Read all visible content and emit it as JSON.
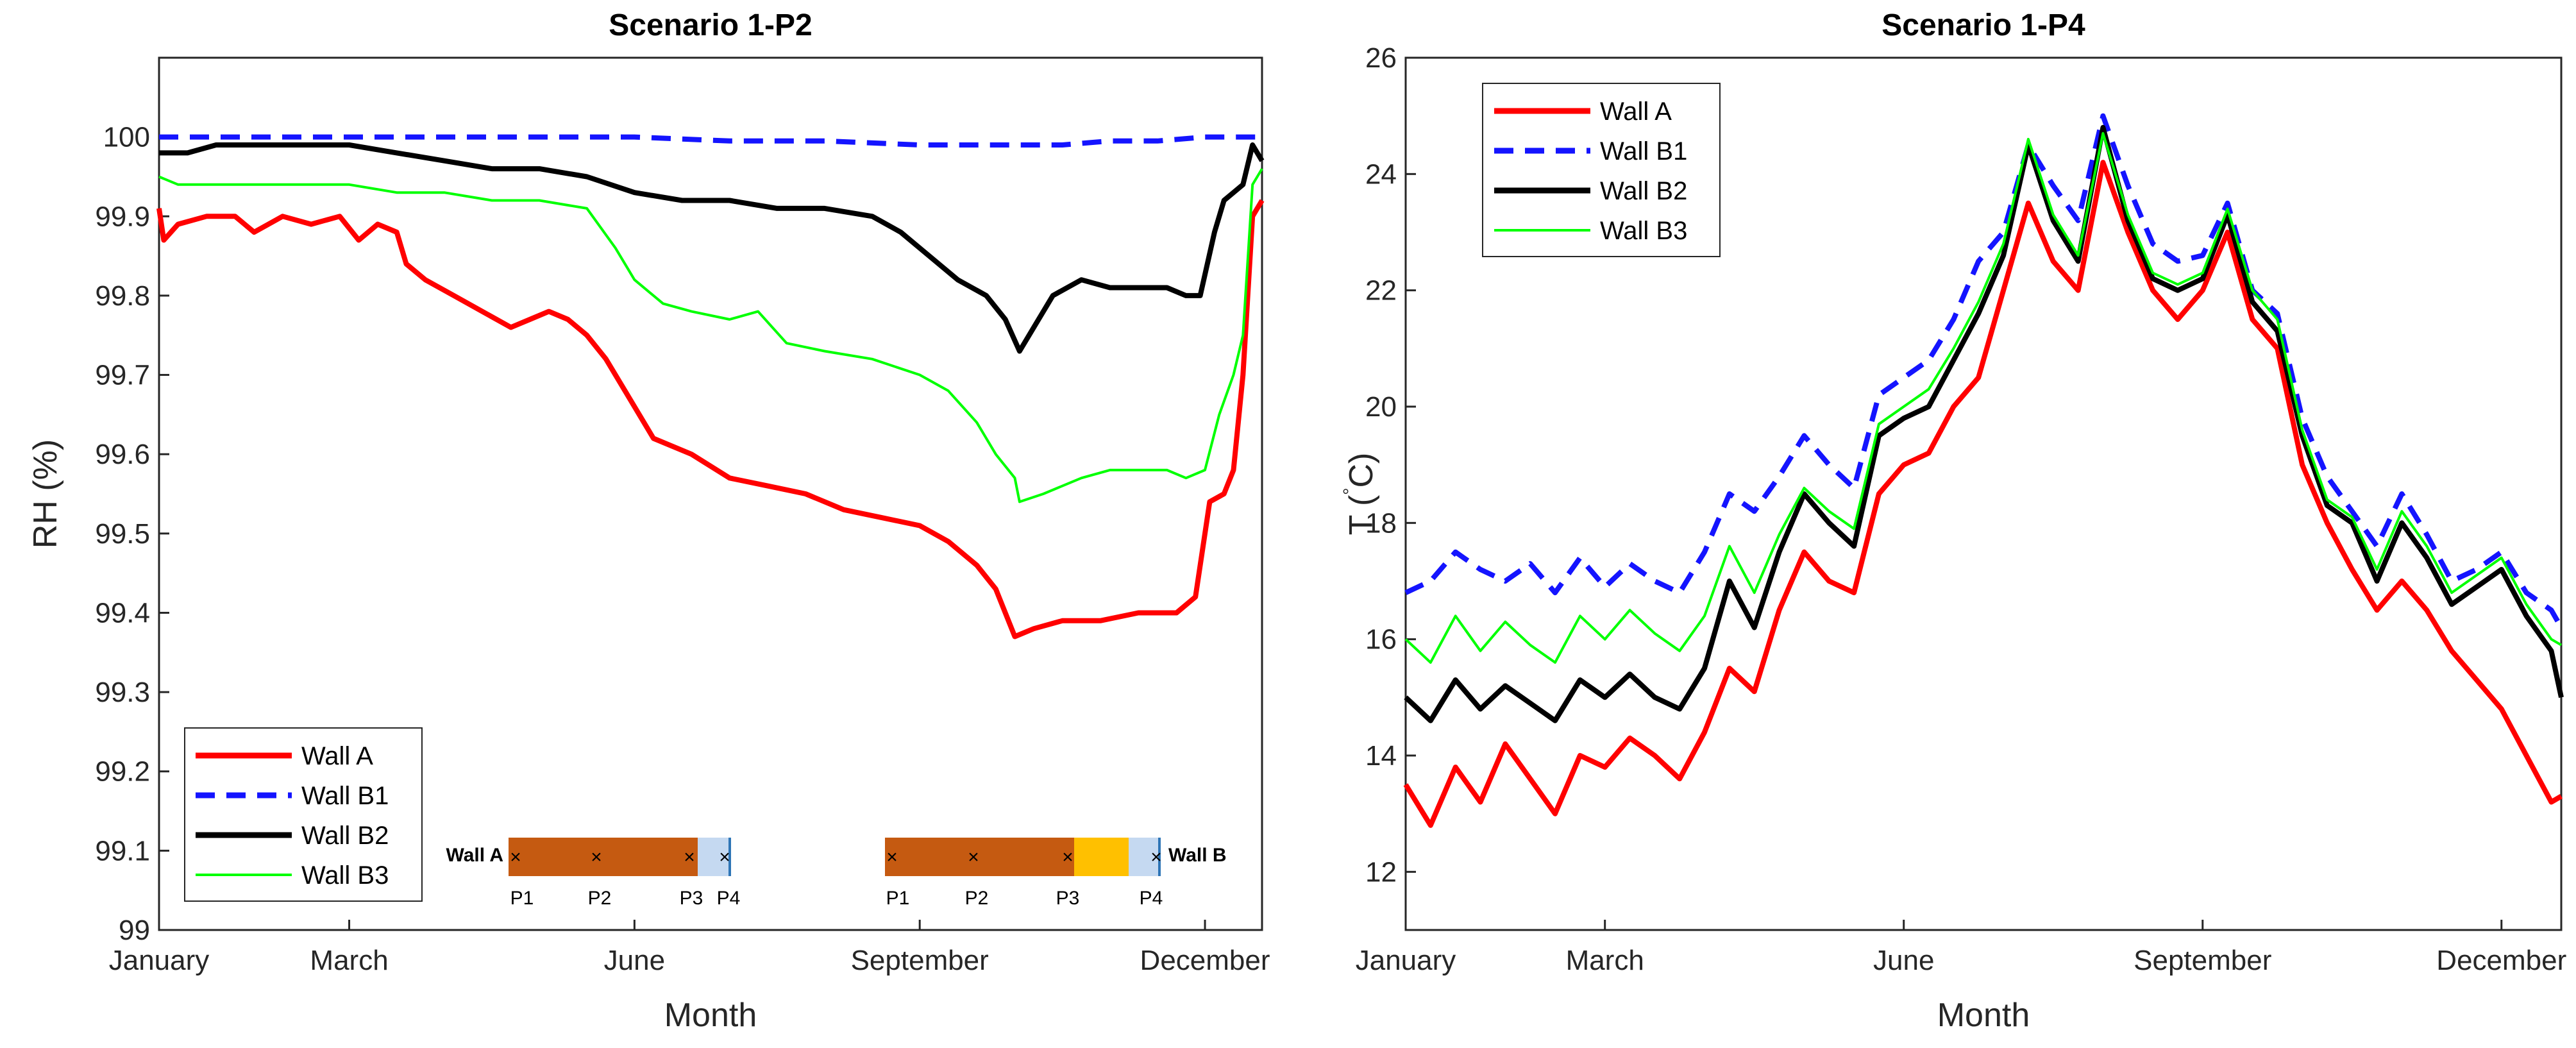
{
  "chart_data": [
    {
      "type": "line",
      "title": "Scenario 1-P2",
      "xlabel": "Month",
      "ylabel": "RH (%)",
      "xlim": [
        1,
        12.6
      ],
      "ylim": [
        99,
        100.1
      ],
      "xticks": [
        1,
        3,
        6,
        9,
        12
      ],
      "xticklabels": [
        "January",
        "March",
        "June",
        "September",
        "December"
      ],
      "yticks": [
        99,
        99.1,
        99.2,
        99.3,
        99.4,
        99.5,
        99.6,
        99.7,
        99.8,
        99.9,
        100
      ],
      "yticklabels": [
        "99",
        "99.1",
        "99.2",
        "99.3",
        "99.4",
        "99.5",
        "99.6",
        "99.7",
        "99.8",
        "99.9",
        "100"
      ],
      "legend": "bottom-left",
      "series": [
        {
          "name": "Wall A",
          "color": "#ff0000",
          "dash": "solid",
          "x": [
            1,
            1.05,
            1.2,
            1.5,
            1.8,
            2.0,
            2.3,
            2.6,
            2.9,
            3.1,
            3.3,
            3.5,
            3.6,
            3.8,
            4.1,
            4.4,
            4.7,
            4.9,
            5.1,
            5.3,
            5.5,
            5.7,
            5.9,
            6.2,
            6.6,
            7.0,
            7.4,
            7.8,
            8.2,
            8.6,
            9.0,
            9.3,
            9.6,
            9.8,
            10.0,
            10.2,
            10.5,
            10.9,
            11.3,
            11.7,
            11.9,
            12.05,
            12.2,
            12.3,
            12.4,
            12.5,
            12.6
          ],
          "y": [
            99.91,
            99.87,
            99.89,
            99.9,
            99.9,
            99.88,
            99.9,
            99.89,
            99.9,
            99.87,
            99.89,
            99.88,
            99.84,
            99.82,
            99.8,
            99.78,
            99.76,
            99.77,
            99.78,
            99.77,
            99.75,
            99.72,
            99.68,
            99.62,
            99.6,
            99.57,
            99.56,
            99.55,
            99.53,
            99.52,
            99.51,
            99.49,
            99.46,
            99.43,
            99.37,
            99.38,
            99.39,
            99.39,
            99.4,
            99.4,
            99.42,
            99.54,
            99.55,
            99.58,
            99.7,
            99.9,
            99.92
          ]
        },
        {
          "name": "Wall B1",
          "color": "#1414ff",
          "dash": "dashed",
          "x": [
            1,
            2,
            3,
            4,
            5,
            6,
            7,
            8,
            9,
            9.5,
            10,
            10.5,
            11,
            11.5,
            12,
            12.6
          ],
          "y": [
            100,
            100,
            100,
            100,
            100,
            100,
            99.995,
            99.995,
            99.99,
            99.99,
            99.99,
            99.99,
            99.995,
            99.995,
            100,
            100
          ]
        },
        {
          "name": "Wall B2",
          "color": "#000000",
          "dash": "solid",
          "x": [
            1,
            1.3,
            1.6,
            2.0,
            2.5,
            3.0,
            3.5,
            4.0,
            4.5,
            5.0,
            5.5,
            6.0,
            6.5,
            7.0,
            7.5,
            8.0,
            8.5,
            8.8,
            9.1,
            9.4,
            9.7,
            9.9,
            10.05,
            10.2,
            10.4,
            10.7,
            11.0,
            11.3,
            11.6,
            11.8,
            11.95,
            12.1,
            12.2,
            12.3,
            12.4,
            12.5,
            12.6
          ],
          "y": [
            99.98,
            99.98,
            99.99,
            99.99,
            99.99,
            99.99,
            99.98,
            99.97,
            99.96,
            99.96,
            99.95,
            99.93,
            99.92,
            99.92,
            99.91,
            99.91,
            99.9,
            99.88,
            99.85,
            99.82,
            99.8,
            99.77,
            99.73,
            99.76,
            99.8,
            99.82,
            99.81,
            99.81,
            99.81,
            99.8,
            99.8,
            99.88,
            99.92,
            99.93,
            99.94,
            99.99,
            99.97
          ]
        },
        {
          "name": "Wall B3",
          "color": "#00ff00",
          "dash": "solid",
          "x": [
            1,
            1.2,
            1.6,
            2.0,
            2.5,
            3.0,
            3.5,
            4.0,
            4.5,
            5.0,
            5.5,
            5.8,
            6.0,
            6.3,
            6.6,
            7.0,
            7.3,
            7.6,
            8.0,
            8.5,
            9.0,
            9.3,
            9.6,
            9.8,
            10.0,
            10.05,
            10.3,
            10.7,
            11.0,
            11.3,
            11.6,
            11.8,
            12.0,
            12.15,
            12.3,
            12.4,
            12.5,
            12.6
          ],
          "y": [
            99.95,
            99.94,
            99.94,
            99.94,
            99.94,
            99.94,
            99.93,
            99.93,
            99.92,
            99.92,
            99.91,
            99.86,
            99.82,
            99.79,
            99.78,
            99.77,
            99.78,
            99.74,
            99.73,
            99.72,
            99.7,
            99.68,
            99.64,
            99.6,
            99.57,
            99.54,
            99.55,
            99.57,
            99.58,
            99.58,
            99.58,
            99.57,
            99.58,
            99.65,
            99.7,
            99.75,
            99.94,
            99.96
          ]
        }
      ],
      "inset": {
        "left_label": "Wall A",
        "right_label": "Wall B",
        "left_points": [
          "P1",
          "P2",
          "P3",
          "P4"
        ],
        "right_points": [
          "P1",
          "P2",
          "P3",
          "P4"
        ],
        "brick_color": "#c55a11",
        "light_color": "#c5d9f1",
        "insulation_color": "#ffc000"
      }
    },
    {
      "type": "line",
      "title": "Scenario 1-P4",
      "xlabel": "Month",
      "ylabel": "T (°C)",
      "ylabel_T": "T (",
      "ylabel_deg": "°",
      "ylabel_C": "C)",
      "xlim": [
        1,
        12.6
      ],
      "ylim": [
        11,
        26
      ],
      "xticks": [
        1,
        3,
        6,
        9,
        12
      ],
      "xticklabels": [
        "January",
        "March",
        "June",
        "September",
        "December"
      ],
      "yticks": [
        12,
        14,
        16,
        18,
        20,
        22,
        24,
        26
      ],
      "yticklabels": [
        "12",
        "14",
        "16",
        "18",
        "20",
        "22",
        "24",
        "26"
      ],
      "legend": "top-left",
      "series": [
        {
          "name": "Wall A",
          "color": "#ff0000",
          "dash": "solid",
          "x": [
            1.0,
            1.25,
            1.5,
            1.75,
            2.0,
            2.25,
            2.5,
            2.75,
            3.0,
            3.25,
            3.5,
            3.75,
            4.0,
            4.25,
            4.5,
            4.75,
            5.0,
            5.25,
            5.5,
            5.75,
            6.0,
            6.25,
            6.5,
            6.75,
            7.0,
            7.25,
            7.5,
            7.75,
            8.0,
            8.25,
            8.5,
            8.75,
            9.0,
            9.25,
            9.5,
            9.75,
            10.0,
            10.25,
            10.5,
            10.75,
            11.0,
            11.25,
            11.5,
            11.75,
            12.0,
            12.25,
            12.5,
            12.6
          ],
          "y": [
            13.5,
            12.8,
            13.8,
            13.2,
            14.2,
            13.6,
            13.0,
            14.0,
            13.8,
            14.3,
            14.0,
            13.6,
            14.4,
            15.5,
            15.1,
            16.5,
            17.5,
            17.0,
            16.8,
            18.5,
            19.0,
            19.2,
            20.0,
            20.5,
            22.0,
            23.5,
            22.5,
            22.0,
            24.2,
            23.0,
            22.0,
            21.5,
            22.0,
            23.0,
            21.5,
            21.0,
            19.0,
            18.0,
            17.2,
            16.5,
            17.0,
            16.5,
            15.8,
            15.3,
            14.8,
            14.0,
            13.2,
            13.3
          ]
        },
        {
          "name": "Wall B1",
          "color": "#1414ff",
          "dash": "dashed",
          "x": [
            1.0,
            1.25,
            1.5,
            1.75,
            2.0,
            2.25,
            2.5,
            2.75,
            3.0,
            3.25,
            3.5,
            3.75,
            4.0,
            4.25,
            4.5,
            4.75,
            5.0,
            5.25,
            5.5,
            5.75,
            6.0,
            6.25,
            6.5,
            6.75,
            7.0,
            7.25,
            7.5,
            7.75,
            8.0,
            8.25,
            8.5,
            8.75,
            9.0,
            9.25,
            9.5,
            9.75,
            10.0,
            10.25,
            10.5,
            10.75,
            11.0,
            11.25,
            11.5,
            11.75,
            12.0,
            12.25,
            12.5,
            12.6
          ],
          "y": [
            16.8,
            17.0,
            17.5,
            17.2,
            17.0,
            17.3,
            16.8,
            17.4,
            16.9,
            17.3,
            17.0,
            16.8,
            17.5,
            18.5,
            18.2,
            18.8,
            19.5,
            19.0,
            18.6,
            20.2,
            20.5,
            20.8,
            21.5,
            22.5,
            23.0,
            24.5,
            23.8,
            23.2,
            25.0,
            23.8,
            22.8,
            22.5,
            22.6,
            23.5,
            22.0,
            21.6,
            19.8,
            18.8,
            18.2,
            17.6,
            18.5,
            17.8,
            17.0,
            17.2,
            17.5,
            16.8,
            16.5,
            16.2
          ]
        },
        {
          "name": "Wall B2",
          "color": "#000000",
          "dash": "solid",
          "x": [
            1.0,
            1.25,
            1.5,
            1.75,
            2.0,
            2.25,
            2.5,
            2.75,
            3.0,
            3.25,
            3.5,
            3.75,
            4.0,
            4.25,
            4.5,
            4.75,
            5.0,
            5.25,
            5.5,
            5.75,
            6.0,
            6.25,
            6.5,
            6.75,
            7.0,
            7.25,
            7.5,
            7.75,
            8.0,
            8.25,
            8.5,
            8.75,
            9.0,
            9.25,
            9.5,
            9.75,
            10.0,
            10.25,
            10.5,
            10.75,
            11.0,
            11.25,
            11.5,
            11.75,
            12.0,
            12.25,
            12.5,
            12.6
          ],
          "y": [
            15.0,
            14.6,
            15.3,
            14.8,
            15.2,
            14.9,
            14.6,
            15.3,
            15.0,
            15.4,
            15.0,
            14.8,
            15.5,
            17.0,
            16.2,
            17.5,
            18.5,
            18.0,
            17.6,
            19.5,
            19.8,
            20.0,
            20.8,
            21.6,
            22.6,
            24.5,
            23.2,
            22.5,
            24.8,
            23.2,
            22.2,
            22.0,
            22.2,
            23.3,
            21.8,
            21.3,
            19.5,
            18.3,
            18.0,
            17.0,
            18.0,
            17.4,
            16.6,
            16.9,
            17.2,
            16.4,
            15.8,
            15.0
          ]
        },
        {
          "name": "Wall B3",
          "color": "#00ff00",
          "dash": "solid",
          "x": [
            1.0,
            1.25,
            1.5,
            1.75,
            2.0,
            2.25,
            2.5,
            2.75,
            3.0,
            3.25,
            3.5,
            3.75,
            4.0,
            4.25,
            4.5,
            4.75,
            5.0,
            5.25,
            5.5,
            5.75,
            6.0,
            6.25,
            6.5,
            6.75,
            7.0,
            7.25,
            7.5,
            7.75,
            8.0,
            8.25,
            8.5,
            8.75,
            9.0,
            9.25,
            9.5,
            9.75,
            10.0,
            10.25,
            10.5,
            10.75,
            11.0,
            11.25,
            11.5,
            11.75,
            12.0,
            12.25,
            12.5,
            12.6
          ],
          "y": [
            16.0,
            15.6,
            16.4,
            15.8,
            16.3,
            15.9,
            15.6,
            16.4,
            16.0,
            16.5,
            16.1,
            15.8,
            16.4,
            17.6,
            16.8,
            17.8,
            18.6,
            18.2,
            17.9,
            19.7,
            20.0,
            20.3,
            21.0,
            21.8,
            22.8,
            24.6,
            23.3,
            22.6,
            24.7,
            23.3,
            22.3,
            22.1,
            22.3,
            23.4,
            22.0,
            21.5,
            19.6,
            18.4,
            18.1,
            17.2,
            18.2,
            17.6,
            16.8,
            17.1,
            17.4,
            16.6,
            16.0,
            15.9
          ]
        }
      ]
    }
  ]
}
